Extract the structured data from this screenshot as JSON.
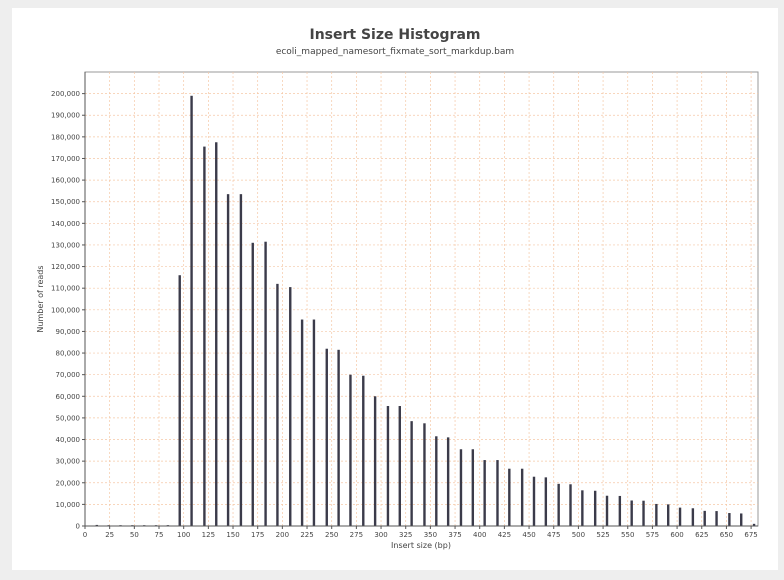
{
  "chart_data": {
    "type": "bar",
    "title": "Insert Size Histogram",
    "subtitle": "ecoli_mapped_namesort_fixmate_sort_markdup.bam",
    "xlabel": "Insert size (bp)",
    "ylabel": "Number of reads",
    "xlim": [
      0,
      682
    ],
    "ylim": [
      0,
      210000
    ],
    "grid": true,
    "x_ticks": [
      0,
      25,
      50,
      75,
      100,
      125,
      150,
      175,
      200,
      225,
      250,
      275,
      300,
      325,
      350,
      375,
      400,
      425,
      450,
      475,
      500,
      525,
      550,
      575,
      600,
      625,
      650,
      675
    ],
    "x_tick_labels": [
      "0",
      "25",
      "50",
      "75",
      "100",
      "125",
      "150",
      "175",
      "200",
      "225",
      "250",
      "275",
      "300",
      "325",
      "350",
      "375",
      "400",
      "425",
      "450",
      "475",
      "500",
      "525",
      "550",
      "575",
      "600",
      "625",
      "650",
      "675"
    ],
    "y_ticks": [
      0,
      10000,
      20000,
      30000,
      40000,
      50000,
      60000,
      70000,
      80000,
      90000,
      100000,
      110000,
      120000,
      130000,
      140000,
      150000,
      160000,
      170000,
      180000,
      190000,
      200000
    ],
    "y_tick_labels": [
      "0",
      "10,000",
      "20,000",
      "30,000",
      "40,000",
      "50,000",
      "60,000",
      "70,000",
      "80,000",
      "90,000",
      "100,000",
      "110,000",
      "120,000",
      "130,000",
      "140,000",
      "150,000",
      "160,000",
      "170,000",
      "180,000",
      "190,000",
      "200,000"
    ],
    "x": [
      12,
      24,
      36,
      48,
      60,
      72,
      84,
      96,
      108,
      121,
      133,
      145,
      158,
      170,
      183,
      195,
      208,
      220,
      232,
      245,
      257,
      269,
      282,
      294,
      307,
      319,
      331,
      344,
      356,
      368,
      381,
      393,
      405,
      418,
      430,
      443,
      455,
      467,
      480,
      492,
      504,
      517,
      529,
      542,
      554,
      566,
      579,
      591,
      603,
      616,
      628,
      640,
      653,
      665,
      678
    ],
    "values": [
      500,
      200,
      200,
      200,
      300,
      300,
      400,
      116000,
      199000,
      175500,
      177500,
      153500,
      153500,
      131000,
      131500,
      112000,
      110500,
      95500,
      95500,
      82000,
      81500,
      70000,
      69500,
      60000,
      55500,
      55500,
      48500,
      47500,
      41500,
      41000,
      35500,
      35500,
      30500,
      30500,
      26500,
      26500,
      22800,
      22500,
      19500,
      19300,
      16500,
      16300,
      14000,
      13900,
      11800,
      11700,
      10200,
      10000,
      8500,
      8200,
      7000,
      6900,
      6000,
      5800,
      1000
    ]
  }
}
